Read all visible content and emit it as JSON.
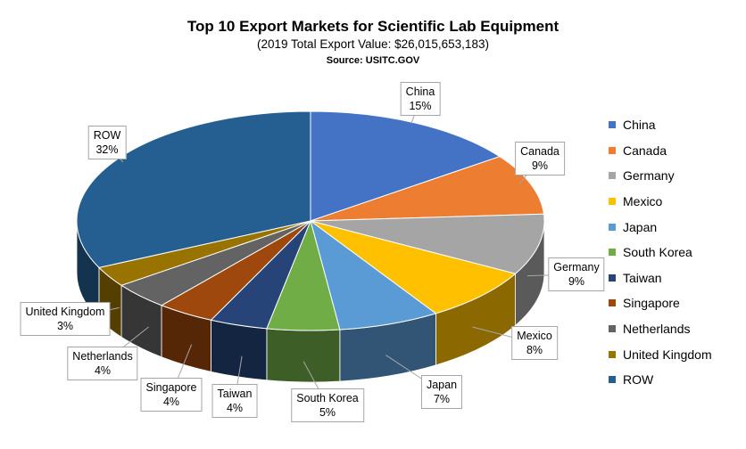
{
  "chart_data": {
    "type": "pie",
    "style": "3d",
    "title": "Top 10 Export Markets for Scientific Lab Equipment",
    "subtitle": "(2019 Total Export Value: $26,015,653,183)",
    "source": "Source: USITC.GOV",
    "legend_position": "right",
    "slices": [
      {
        "label": "China",
        "value": 15,
        "display": "15%",
        "color": "#4472C4"
      },
      {
        "label": "Canada",
        "value": 9,
        "display": "9%",
        "color": "#ED7D31"
      },
      {
        "label": "Germany",
        "value": 9,
        "display": "9%",
        "color": "#A5A5A5"
      },
      {
        "label": "Mexico",
        "value": 8,
        "display": "8%",
        "color": "#FFC000"
      },
      {
        "label": "Japan",
        "value": 7,
        "display": "7%",
        "color": "#5B9BD5"
      },
      {
        "label": "South Korea",
        "value": 5,
        "display": "5%",
        "color": "#70AD47"
      },
      {
        "label": "Taiwan",
        "value": 4,
        "display": "4%",
        "color": "#264478"
      },
      {
        "label": "Singapore",
        "value": 4,
        "display": "4%",
        "color": "#9E480E"
      },
      {
        "label": "Netherlands",
        "value": 4,
        "display": "4%",
        "color": "#636363"
      },
      {
        "label": "United Kingdom",
        "value": 3,
        "display": "3%",
        "color": "#997300"
      },
      {
        "label": "ROW",
        "value": 32,
        "display": "32%",
        "color": "#255E91"
      }
    ]
  }
}
